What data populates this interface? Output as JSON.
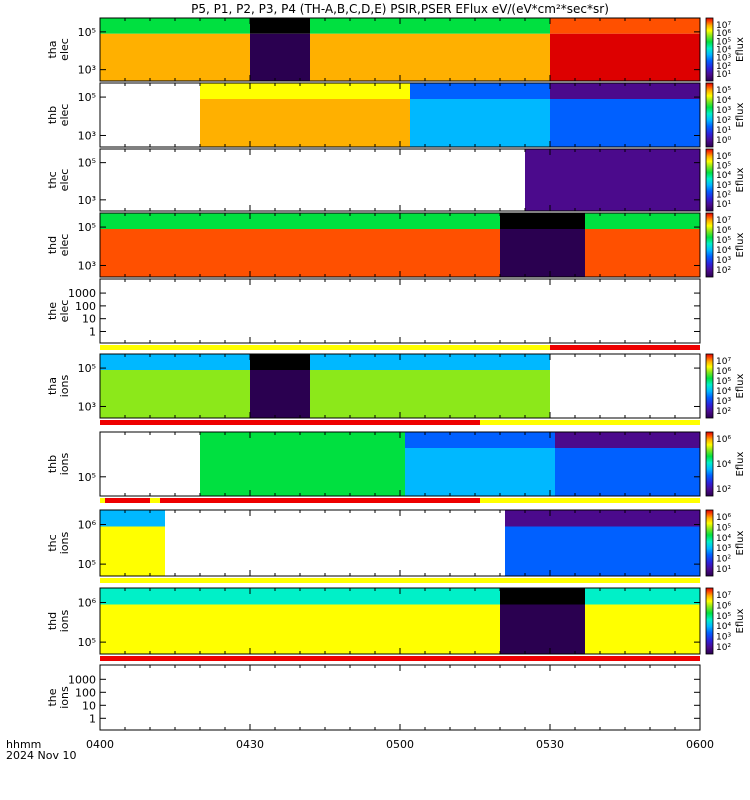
{
  "title": "P5, P1, P2, P3, P4 (TH-A,B,C,D,E) PSIR,PSER EFlux eV/(eV*cm²*sec*sr)",
  "time_label": {
    "line1": "hhmm",
    "line2": "2024 Nov 10"
  },
  "colorbar_label": "Eflux",
  "colors": {
    "no_data": "#ffffff",
    "flag_yellow": "#ffff00",
    "flag_red": "#ee0000",
    "scale": [
      "#000000",
      "#2a0050",
      "#4b0a8c",
      "#2e1fd8",
      "#0060ff",
      "#00b8ff",
      "#00f0c8",
      "#00e040",
      "#8ce81a",
      "#ffff00",
      "#ffb000",
      "#ff5000",
      "#dd0000"
    ]
  },
  "chart_data": {
    "type": "heatmap",
    "x_axis": {
      "ticks": [
        "0400",
        "0430",
        "0500",
        "0530",
        "0600"
      ],
      "range": [
        "04:00",
        "06:00"
      ]
    },
    "panels": [
      {
        "id": "tha_elec",
        "probe": "tha",
        "species": "elec",
        "ylabel": [
          "tha",
          "elec"
        ],
        "yscale": "log",
        "yticks": [
          "10⁵",
          "10³"
        ],
        "colorbar_ticks": [
          "10⁷",
          "10⁶",
          "10⁵",
          "10⁴",
          "10³",
          "10²",
          "10¹"
        ],
        "has_colorbar": true,
        "segments": [
          {
            "from": "04:00",
            "to": "04:30",
            "level_top": 0.55,
            "level_band": 0.85
          },
          {
            "from": "04:30",
            "to": "04:42",
            "level_top": 0.02,
            "level_band": 0.05
          },
          {
            "from": "04:42",
            "to": "05:30",
            "level_top": 0.55,
            "level_band": 0.85
          },
          {
            "from": "05:30",
            "to": "06:00",
            "level_top": 0.95,
            "level_band": 1.0
          }
        ],
        "flag": null
      },
      {
        "id": "thb_elec",
        "probe": "thb",
        "species": "elec",
        "ylabel": [
          "thb",
          "elec"
        ],
        "yscale": "log",
        "yticks": [
          "10⁵",
          "10³"
        ],
        "colorbar_ticks": [
          "10⁵",
          "10⁴",
          "10³",
          "10²",
          "10¹",
          "10⁰"
        ],
        "has_colorbar": true,
        "segments": [
          {
            "from": "04:20",
            "to": "05:02",
            "level_top": 0.75,
            "level_band": 0.8
          },
          {
            "from": "05:02",
            "to": "05:30",
            "level_top": 0.3,
            "level_band": 0.45
          },
          {
            "from": "05:30",
            "to": "06:00",
            "level_top": 0.15,
            "level_band": 0.3
          }
        ],
        "flag": null
      },
      {
        "id": "thc_elec",
        "probe": "thc",
        "species": "elec",
        "ylabel": [
          "thc",
          "elec"
        ],
        "yscale": "log",
        "yticks": [
          "10⁵",
          "10³"
        ],
        "colorbar_ticks": [
          "10⁶",
          "10⁵",
          "10⁴",
          "10³",
          "10²",
          "10¹"
        ],
        "has_colorbar": true,
        "segments": [
          {
            "from": "05:25",
            "to": "06:00",
            "level_top": 0.15,
            "level_band": 0.2
          }
        ],
        "flag": null
      },
      {
        "id": "thd_elec",
        "probe": "thd",
        "species": "elec",
        "ylabel": [
          "thd",
          "elec"
        ],
        "yscale": "log",
        "yticks": [
          "10⁵",
          "10³"
        ],
        "colorbar_ticks": [
          "10⁷",
          "10⁶",
          "10⁵",
          "10⁴",
          "10³",
          "10²"
        ],
        "has_colorbar": true,
        "segments": [
          {
            "from": "04:00",
            "to": "05:20",
            "level_top": 0.6,
            "level_band": 0.92
          },
          {
            "from": "05:20",
            "to": "05:37",
            "level_top": 0.02,
            "level_band": 0.05
          },
          {
            "from": "05:37",
            "to": "06:00",
            "level_top": 0.6,
            "level_band": 0.92
          }
        ],
        "flag": null
      },
      {
        "id": "the_elec",
        "probe": "the",
        "species": "elec",
        "ylabel": [
          "the",
          "elec"
        ],
        "yscale": "log",
        "yticks": [
          "1000",
          "100",
          "10",
          "1"
        ],
        "colorbar_ticks": [],
        "has_colorbar": false,
        "segments": [],
        "flag": [
          {
            "from": "04:00",
            "to": "05:30",
            "color": "yellow"
          },
          {
            "from": "05:30",
            "to": "06:00",
            "color": "red"
          }
        ]
      },
      {
        "id": "tha_ions",
        "probe": "tha",
        "species": "ions",
        "ylabel": [
          "tha",
          "ions"
        ],
        "yscale": "log",
        "yticks": [
          "10⁵",
          "10³"
        ],
        "colorbar_ticks": [
          "10⁷",
          "10⁶",
          "10⁵",
          "10⁴",
          "10³",
          "10²"
        ],
        "has_colorbar": true,
        "segments": [
          {
            "from": "04:00",
            "to": "04:30",
            "level_top": 0.45,
            "level_band": 0.7
          },
          {
            "from": "04:30",
            "to": "04:42",
            "level_top": 0.02,
            "level_band": 0.05
          },
          {
            "from": "04:42",
            "to": "05:30",
            "level_top": 0.45,
            "level_band": 0.7
          }
        ],
        "flag": [
          {
            "from": "04:00",
            "to": "05:16",
            "color": "red"
          },
          {
            "from": "05:16",
            "to": "06:00",
            "color": "yellow"
          }
        ]
      },
      {
        "id": "thb_ions",
        "probe": "thb",
        "species": "ions",
        "ylabel": [
          "thb",
          "ions"
        ],
        "yscale": "log",
        "yticks": [
          "10⁵"
        ],
        "colorbar_ticks": [
          "10⁶",
          "10⁴",
          "10²"
        ],
        "has_colorbar": true,
        "segments": [
          {
            "from": "04:20",
            "to": "05:01",
            "level_top": 0.55,
            "level_band": 0.6
          },
          {
            "from": "05:01",
            "to": "05:31",
            "level_top": 0.3,
            "level_band": 0.4
          },
          {
            "from": "05:31",
            "to": "06:00",
            "level_top": 0.15,
            "level_band": 0.3
          }
        ],
        "flag": [
          {
            "from": "04:00",
            "to": "04:01",
            "color": "yellow"
          },
          {
            "from": "04:01",
            "to": "04:10",
            "color": "red"
          },
          {
            "from": "04:10",
            "to": "04:12",
            "color": "yellow"
          },
          {
            "from": "04:12",
            "to": "05:16",
            "color": "red"
          },
          {
            "from": "05:16",
            "to": "06:00",
            "color": "yellow"
          }
        ]
      },
      {
        "id": "thc_ions",
        "probe": "thc",
        "species": "ions",
        "ylabel": [
          "thc",
          "ions"
        ],
        "yscale": "log",
        "yticks": [
          "10⁶",
          "10⁵"
        ],
        "colorbar_ticks": [
          "10⁶",
          "10⁵",
          "10⁴",
          "10³",
          "10²",
          "10¹"
        ],
        "has_colorbar": true,
        "segments": [
          {
            "from": "04:00",
            "to": "04:13",
            "level_top": 0.45,
            "level_band": 0.75
          },
          {
            "from": "05:21",
            "to": "06:00",
            "level_top": 0.15,
            "level_band": 0.35
          }
        ],
        "flag": [
          {
            "from": "04:00",
            "to": "06:00",
            "color": "yellow"
          }
        ]
      },
      {
        "id": "thd_ions",
        "probe": "thd",
        "species": "ions",
        "ylabel": [
          "thd",
          "ions"
        ],
        "yscale": "log",
        "yticks": [
          "10⁶",
          "10⁵"
        ],
        "colorbar_ticks": [
          "10⁷",
          "10⁶",
          "10⁵",
          "10⁴",
          "10³",
          "10²"
        ],
        "has_colorbar": true,
        "segments": [
          {
            "from": "04:00",
            "to": "05:20",
            "level_top": 0.5,
            "level_band": 0.72
          },
          {
            "from": "05:20",
            "to": "05:37",
            "level_top": 0.02,
            "level_band": 0.05
          },
          {
            "from": "05:37",
            "to": "06:00",
            "level_top": 0.5,
            "level_band": 0.72
          }
        ],
        "flag": [
          {
            "from": "04:00",
            "to": "06:00",
            "color": "red"
          }
        ]
      },
      {
        "id": "the_ions",
        "probe": "the",
        "species": "ions",
        "ylabel": [
          "the",
          "ions"
        ],
        "yscale": "log",
        "yticks": [
          "1000",
          "100",
          "10",
          "1"
        ],
        "colorbar_ticks": [],
        "has_colorbar": false,
        "segments": [],
        "flag": null
      }
    ]
  }
}
